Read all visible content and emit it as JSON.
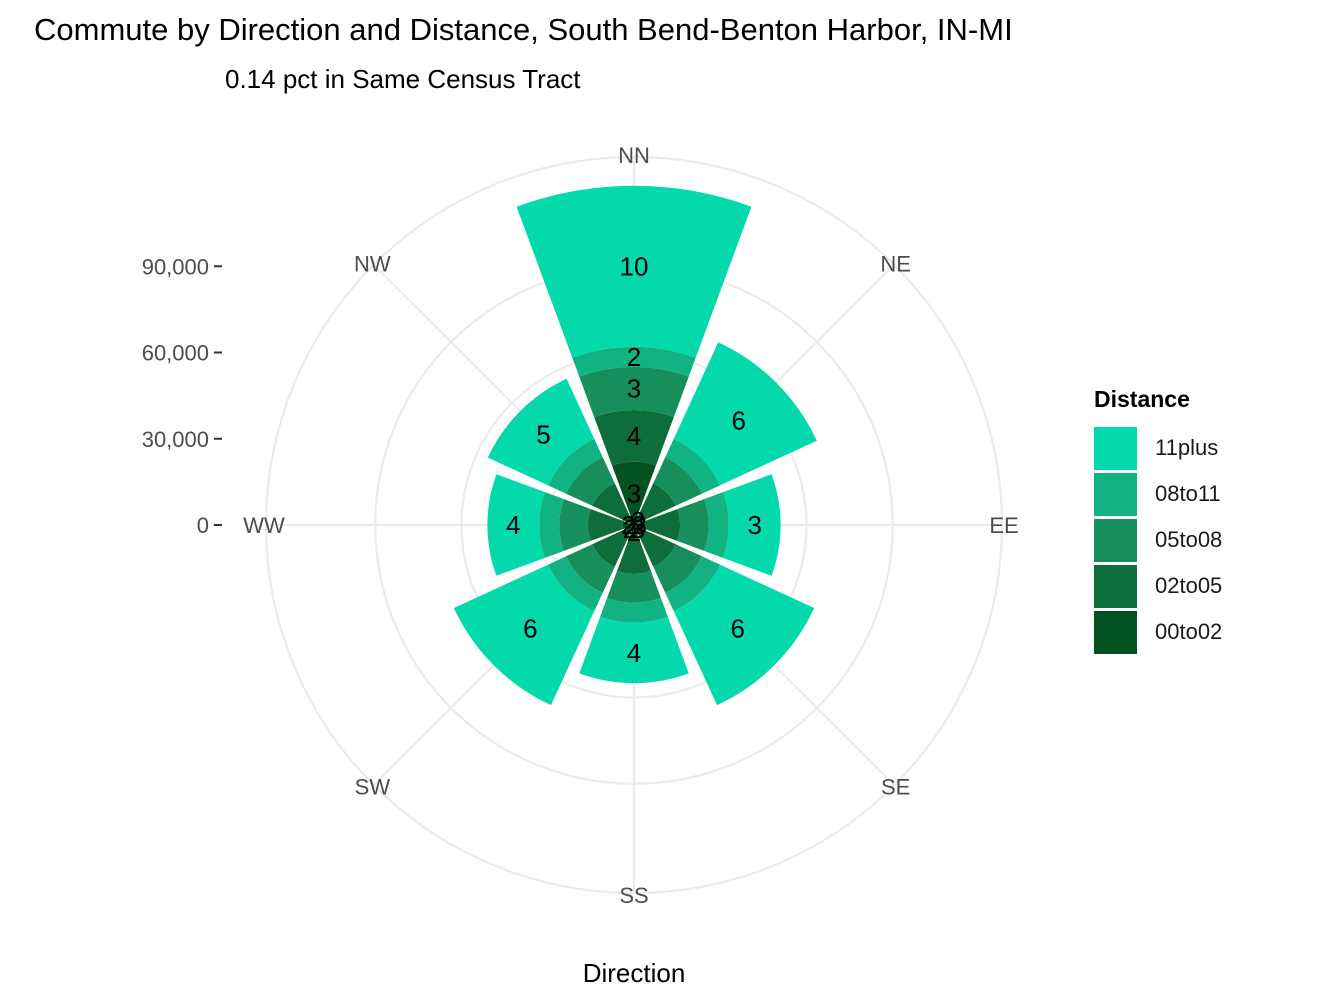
{
  "chart_data": {
    "type": "bar",
    "polar": true,
    "title": "Commute by Direction and Distance, South Bend-Benton Harbor, IN-MI",
    "subtitle": "0.14 pct in Same Census Tract",
    "xlabel": "Direction",
    "ylabel": "",
    "categories": [
      "NN",
      "NE",
      "EE",
      "SE",
      "SS",
      "SW",
      "WW",
      "NW"
    ],
    "y_ticks": [
      0,
      30000,
      60000,
      90000
    ],
    "y_tick_labels": [
      "0",
      "30,000",
      "60,000",
      "90,000"
    ],
    "ylim": [
      0,
      128000
    ],
    "grid": true,
    "legend": {
      "title": "Distance",
      "position": "right"
    },
    "series": [
      {
        "name": "00to02",
        "color": "#04521f",
        "values": [
          22000,
          4000,
          4000,
          4000,
          5000,
          4000,
          4000,
          4000
        ]
      },
      {
        "name": "02to05",
        "color": "#0d6e39",
        "values": [
          18000,
          12000,
          12000,
          12000,
          12000,
          12000,
          12000,
          12000
        ]
      },
      {
        "name": "05to08",
        "color": "#168f5c",
        "values": [
          15000,
          10000,
          10000,
          10000,
          10000,
          10000,
          10000,
          10000
        ]
      },
      {
        "name": "08to11",
        "color": "#12b383",
        "values": [
          7000,
          7000,
          7000,
          7000,
          7000,
          7000,
          7000,
          7000
        ]
      },
      {
        "name": "11plus",
        "color": "#04d9ab",
        "values": [
          56000,
          37000,
          18000,
          36000,
          21000,
          36000,
          18000,
          23000
        ]
      }
    ],
    "bar_labels": [
      {
        "category": "NN",
        "series": "00to02",
        "text": "3"
      },
      {
        "category": "NN",
        "series": "02to05",
        "text": "4"
      },
      {
        "category": "NN",
        "series": "05to08",
        "text": "3"
      },
      {
        "category": "NN",
        "series": "08to11",
        "text": "2"
      },
      {
        "category": "NN",
        "series": "11plus",
        "text": "10"
      },
      {
        "category": "NE",
        "series": "00to02",
        "text": "3"
      },
      {
        "category": "NE",
        "series": "11plus",
        "text": "6"
      },
      {
        "category": "EE",
        "series": "00to02",
        "text": "3"
      },
      {
        "category": "EE",
        "series": "11plus",
        "text": "3"
      },
      {
        "category": "SE",
        "series": "00to02",
        "text": "3"
      },
      {
        "category": "SE",
        "series": "11plus",
        "text": "6"
      },
      {
        "category": "SS",
        "series": "00to02",
        "text": "2"
      },
      {
        "category": "SS",
        "series": "11plus",
        "text": "4"
      },
      {
        "category": "SW",
        "series": "00to02",
        "text": "2"
      },
      {
        "category": "SW",
        "series": "11plus",
        "text": "6"
      },
      {
        "category": "WW",
        "series": "00to02",
        "text": "2"
      },
      {
        "category": "WW",
        "series": "11plus",
        "text": "4"
      },
      {
        "category": "NW",
        "series": "11plus",
        "text": "5"
      }
    ]
  }
}
